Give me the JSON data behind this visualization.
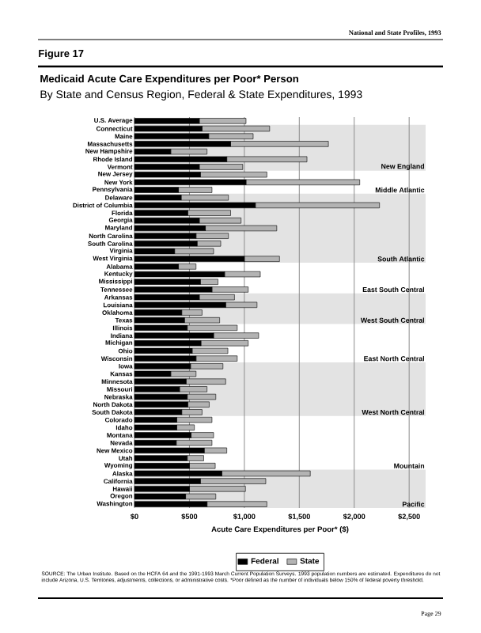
{
  "chart_data": {
    "type": "bar",
    "orientation": "horizontal",
    "stacked": true,
    "title": "Medicaid Acute Care Expenditures per Poor* Person",
    "subtitle": "By State and Census Region, Federal & State Expenditures, 1993",
    "xlabel": "Acute Care Expenditures per Poor* ($)",
    "categories": [
      "U.S. Average",
      "Connecticut",
      "Maine",
      "Massachusetts",
      "New Hampshire",
      "Rhode Island",
      "Vermont",
      "New Jersey",
      "New York",
      "Pennsylvania",
      "Delaware",
      "District of Columbia",
      "Florida",
      "Georgia",
      "Maryland",
      "North Carolina",
      "South Carolina",
      "Virginia",
      "West Virginia",
      "Alabama",
      "Kentucky",
      "Mississippi",
      "Tennessee",
      "Arkansas",
      "Louisiana",
      "Oklahoma",
      "Texas",
      "Illinois",
      "Indiana",
      "Michigan",
      "Ohio",
      "Wisconsin",
      "Iowa",
      "Kansas",
      "Minnesota",
      "Missouri",
      "Nebraska",
      "North Dakota",
      "South Dakota",
      "Colorado",
      "Idaho",
      "Montana",
      "Nevada",
      "New Mexico",
      "Utah",
      "Wyoming",
      "Alaska",
      "California",
      "Hawaii",
      "Oregon",
      "Washington"
    ],
    "series": [
      {
        "name": "Federal",
        "color": "#000000",
        "values": [
          590,
          615,
          675,
          875,
          330,
          840,
          590,
          600,
          1015,
          400,
          425,
          1100,
          485,
          590,
          645,
          560,
          570,
          365,
          1000,
          400,
          820,
          600,
          705,
          590,
          830,
          430,
          455,
          480,
          720,
          605,
          525,
          560,
          510,
          330,
          470,
          410,
          480,
          485,
          430,
          385,
          385,
          515,
          380,
          635,
          480,
          500,
          795,
          600,
          500,
          465,
          660
        ]
      },
      {
        "name": "State",
        "color": "#b3b3b3",
        "values": [
          425,
          615,
          405,
          890,
          330,
          730,
          395,
          605,
          1035,
          305,
          430,
          1130,
          390,
          380,
          650,
          295,
          215,
          355,
          320,
          160,
          325,
          160,
          330,
          320,
          285,
          185,
          320,
          455,
          410,
          430,
          325,
          375,
          295,
          230,
          360,
          250,
          260,
          195,
          185,
          320,
          160,
          205,
          325,
          205,
          150,
          235,
          805,
          595,
          510,
          275,
          545
        ]
      }
    ],
    "xlim": [
      0,
      2650
    ],
    "xticks": [
      {
        "value": 0,
        "label": "$0"
      },
      {
        "value": 500,
        "label": "$500"
      },
      {
        "value": 1000,
        "label": "$1,000"
      },
      {
        "value": 1500,
        "label": "$1,500"
      },
      {
        "value": 2000,
        "label": "$2,000"
      },
      {
        "value": 2500,
        "label": "$2,500"
      }
    ],
    "grid": "x",
    "legend": "bottom",
    "bands": [
      {
        "axis": "y",
        "from": "Connecticut",
        "to": "Vermont",
        "label": "New England",
        "color": "#e3e3e3"
      },
      {
        "axis": "y",
        "from": "Delaware",
        "to": "West Virginia",
        "label": "South Atlantic",
        "color": "#e3e3e3"
      },
      {
        "axis": "y",
        "from": "Arkansas",
        "to": "Texas",
        "label": "West South Central",
        "color": "#e3e3e3"
      },
      {
        "axis": "y",
        "from": "Iowa",
        "to": "South Dakota",
        "label": "West North Central",
        "color": "#e3e3e3"
      },
      {
        "axis": "y",
        "from": "Alaska",
        "to": "Washington",
        "label": "Pacific",
        "color": "#e3e3e3"
      }
    ],
    "annotations": [
      {
        "text": "Middle Atlantic",
        "y": "Pennsylvania"
      },
      {
        "text": "East South Central",
        "y": "Tennessee"
      },
      {
        "text": "East North Central",
        "y": "Wisconsin"
      },
      {
        "text": "Mountain",
        "y": "Wyoming"
      },
      "National and State Profiles, 1993",
      "Figure 17",
      "SOURCE: The Urban Institute. Based on the HCFA 64 and the 1991-1993 March Current Population Surveys. 1993 population numbers are estimated. Expenditures do not include Arizona, U.S. Territories, adjustments, collections, or administrative costs. *Poor defined as the number of individuals below 150% of federal poverty threshold.",
      "Page 29"
    ]
  }
}
